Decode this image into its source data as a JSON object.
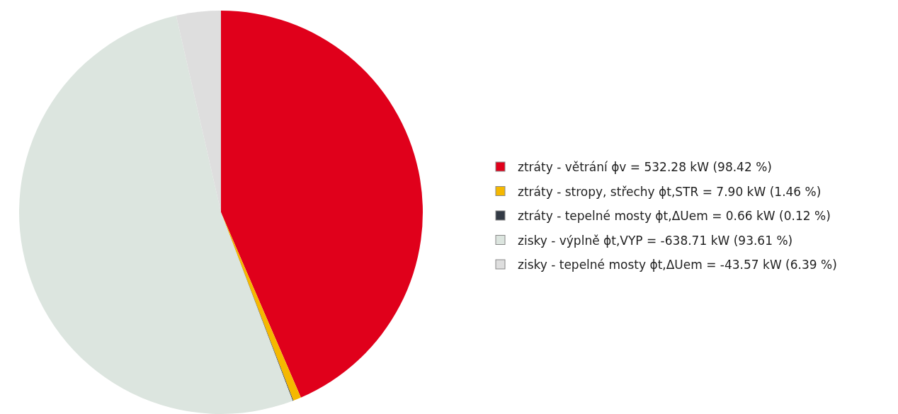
{
  "chart_data": {
    "type": "pie",
    "legend": "right",
    "categories": [
      "ztráty - větrání ϕv = 532.28 kW (98.42 %)",
      "ztráty - stropy, střechy ϕt,STR = 7.90 kW (1.46 %)",
      "ztráty - tepelné mosty ϕt,ΔUem = 0.66 kW (0.12 %)",
      "zisky - výplně ϕt,VYP = -638.71 kW (93.61 %)",
      "zisky - tepelné mosty ϕt,ΔUem = -43.57 kW (6.39 %)"
    ],
    "values": [
      532.28,
      7.9,
      0.66,
      638.71,
      43.57
    ],
    "colors": [
      "#e0001b",
      "#f5b800",
      "#333a45",
      "#dce5df",
      "#dedede"
    ]
  }
}
